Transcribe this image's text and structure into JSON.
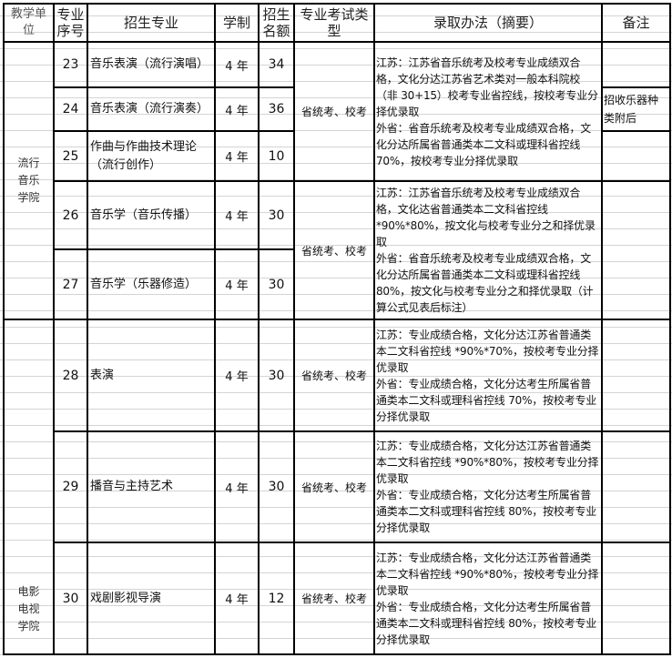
{
  "header": {
    "unit": "教学单位",
    "seq": "专业序号",
    "major": "招生专业",
    "duration": "学制",
    "quota": "招生名额",
    "exam_type": "专业考试类型",
    "method": "录取办法（摘要）",
    "remark": "备注"
  },
  "units": [
    "流行音乐学院",
    "电影电视学院"
  ],
  "rows": [
    {
      "seq": "23",
      "major": "音乐表演（流行演唱）",
      "duration": "4 年",
      "quota": "34"
    },
    {
      "seq": "24",
      "major": "音乐表演（流行演奏）",
      "duration": "4 年",
      "quota": "36"
    },
    {
      "seq": "25",
      "major": "作曲与作曲技术理论（流行创作）",
      "duration": "4 年",
      "quota": "10"
    },
    {
      "seq": "26",
      "major": "音乐学（音乐传播）",
      "duration": "4 年",
      "quota": "30"
    },
    {
      "seq": "27",
      "major": "音乐学（乐器修造）",
      "duration": "4 年",
      "quota": "30"
    },
    {
      "seq": "28",
      "major": "表演",
      "duration": "4 年",
      "quota": "30"
    },
    {
      "seq": "29",
      "major": "播音与主持艺术",
      "duration": "4 年",
      "quota": "30"
    },
    {
      "seq": "30",
      "major": "戏剧影视导演",
      "duration": "4 年",
      "quota": "12"
    }
  ],
  "groups": [
    {
      "exam_type": "省统考、校考",
      "jiangsu": "江苏：江苏省音乐统考及校考专业成绩双合格，文化分达江苏省艺术类对一般本科院校（非 30+15）校考专业省控线，按校考专业分择优录取",
      "other": "外省：省音乐统考及校考专业成绩双合格，文化分达所属省普通类本二文科或理科省控线 70%，按校考专业分择优录取"
    },
    {
      "exam_type": "省统考、校考",
      "jiangsu": "江苏：江苏省音乐统考及校考专业成绩双合格，文化达省普通类本二文科省控线*90%*80%，按文化与校考专业分之和择优录取",
      "other": "外省：省音乐统考及校考专业成绩双合格，文化分达所属省普通类本二文科或理科省控线 80%，按文化与校考专业分之和择优录取（计算公式见表后标注）"
    },
    {
      "exam_type": "省统考、校考",
      "jiangsu": "江苏：专业成绩合格，文化分达江苏省普通类本二文科省控线 *90%*70%，按校考专业分择优录取",
      "other": "外省：专业成绩合格，文化分达考生所属省普通类本二文科或理科省控线 70%，按校考专业分择优录取"
    },
    {
      "exam_type": "省统考、校考",
      "jiangsu": "江苏：专业成绩合格，文化分达江苏省普通类本二文科省控线 *90%*80%，按校考专业分择优录取",
      "other": "外省：专业成绩合格，文化分达考生所属省普通类本二文科或理科省控线 80%，按校考专业分择优录取"
    },
    {
      "exam_type": "省统考、校考",
      "jiangsu": "江苏：专业成绩合格，文化分达江苏省普通类本二文科省控线 *90%*80%，按校考专业分择优录取",
      "other": "外省：专业成绩合格，文化分达考生所属省普通类本二文科或理科省控线 80%，按校考专业分择优录取"
    }
  ],
  "remarks": {
    "row24": "招收乐器种类附后"
  }
}
